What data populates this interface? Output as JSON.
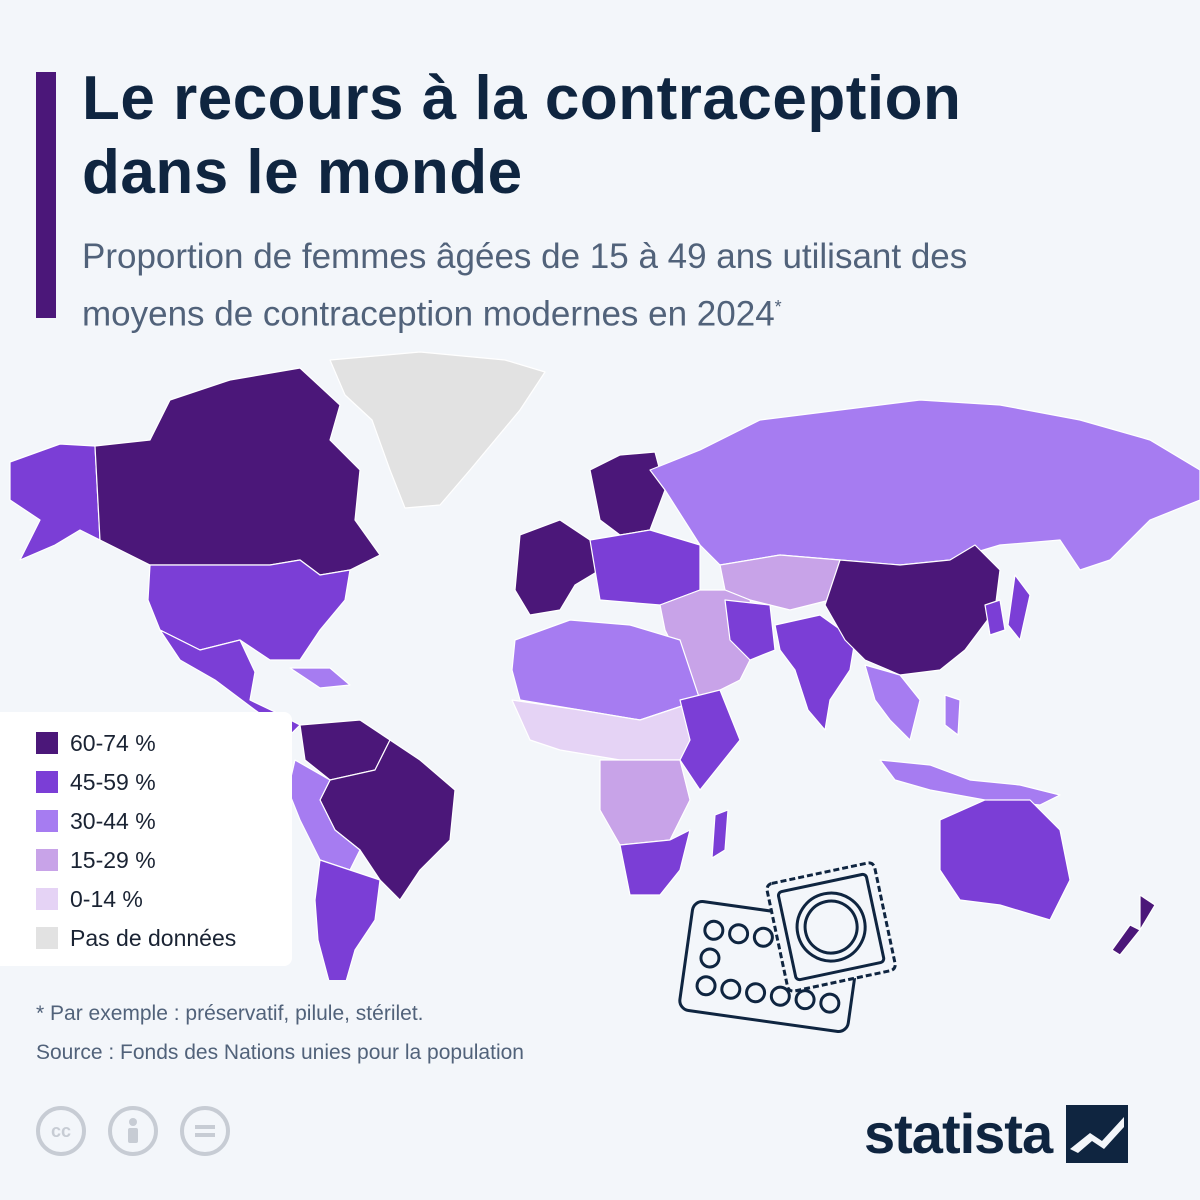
{
  "header": {
    "title_line1": "Le recours à la contraception",
    "title_line2": "dans le monde",
    "subtitle_line1": "Proportion de femmes âgées de 15 à 49 ans utilisant des",
    "subtitle_line2": "moyens de contraception modernes en 2024",
    "subtitle_marker": "*"
  },
  "legend": [
    {
      "label": "60-74 %",
      "color": "#4b1779"
    },
    {
      "label": "45-59 %",
      "color": "#7b3ed6"
    },
    {
      "label": "30-44 %",
      "color": "#a67cf1"
    },
    {
      "label": "15-29 %",
      "color": "#c8a3e8"
    },
    {
      "label": "0-14 %",
      "color": "#e5d3f5"
    },
    {
      "label": "Pas de données",
      "color": "#e2e2e2"
    }
  ],
  "footer": {
    "note": "* Par exemple : préservatif, pilule, stérilet.",
    "source": "Source : Fonds des Nations unies pour la population",
    "license_icons": [
      "cc-icon",
      "attribution-icon",
      "no-derivatives-icon"
    ],
    "brand": "statista"
  },
  "colors": {
    "accent": "#4b1779",
    "title": "#0f2540",
    "background": "#f3f6fa"
  }
}
